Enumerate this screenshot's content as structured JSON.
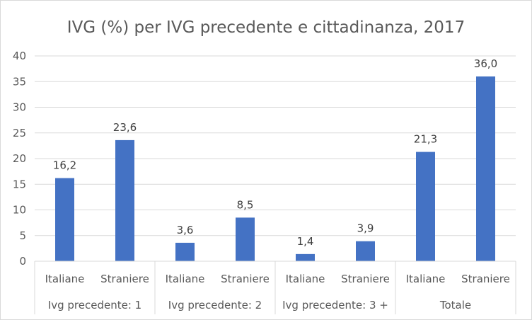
{
  "chart_data": {
    "type": "bar",
    "title": "IVG (%) per IVG precedente e cittadinanza, 2017",
    "xlabel": "",
    "ylabel": "",
    "ylim": [
      0,
      40
    ],
    "yticks": [
      0,
      5,
      10,
      15,
      20,
      25,
      30,
      35,
      40
    ],
    "grid": true,
    "legend": "none",
    "groups": [
      "Ivg precedente: 1",
      "Ivg precedente: 2",
      "Ivg precedente: 3 +",
      "Totale"
    ],
    "categories": [
      "Italiane",
      "Straniere"
    ],
    "values": [
      [
        16.2,
        23.6
      ],
      [
        3.6,
        8.5
      ],
      [
        1.4,
        3.9
      ],
      [
        21.3,
        36.0
      ]
    ],
    "data_labels": [
      [
        "16,2",
        "23,6"
      ],
      [
        "3,6",
        "8,5"
      ],
      [
        "1,4",
        "3,9"
      ],
      [
        "21,3",
        "36,0"
      ]
    ],
    "bar_color": "#4472c4"
  }
}
